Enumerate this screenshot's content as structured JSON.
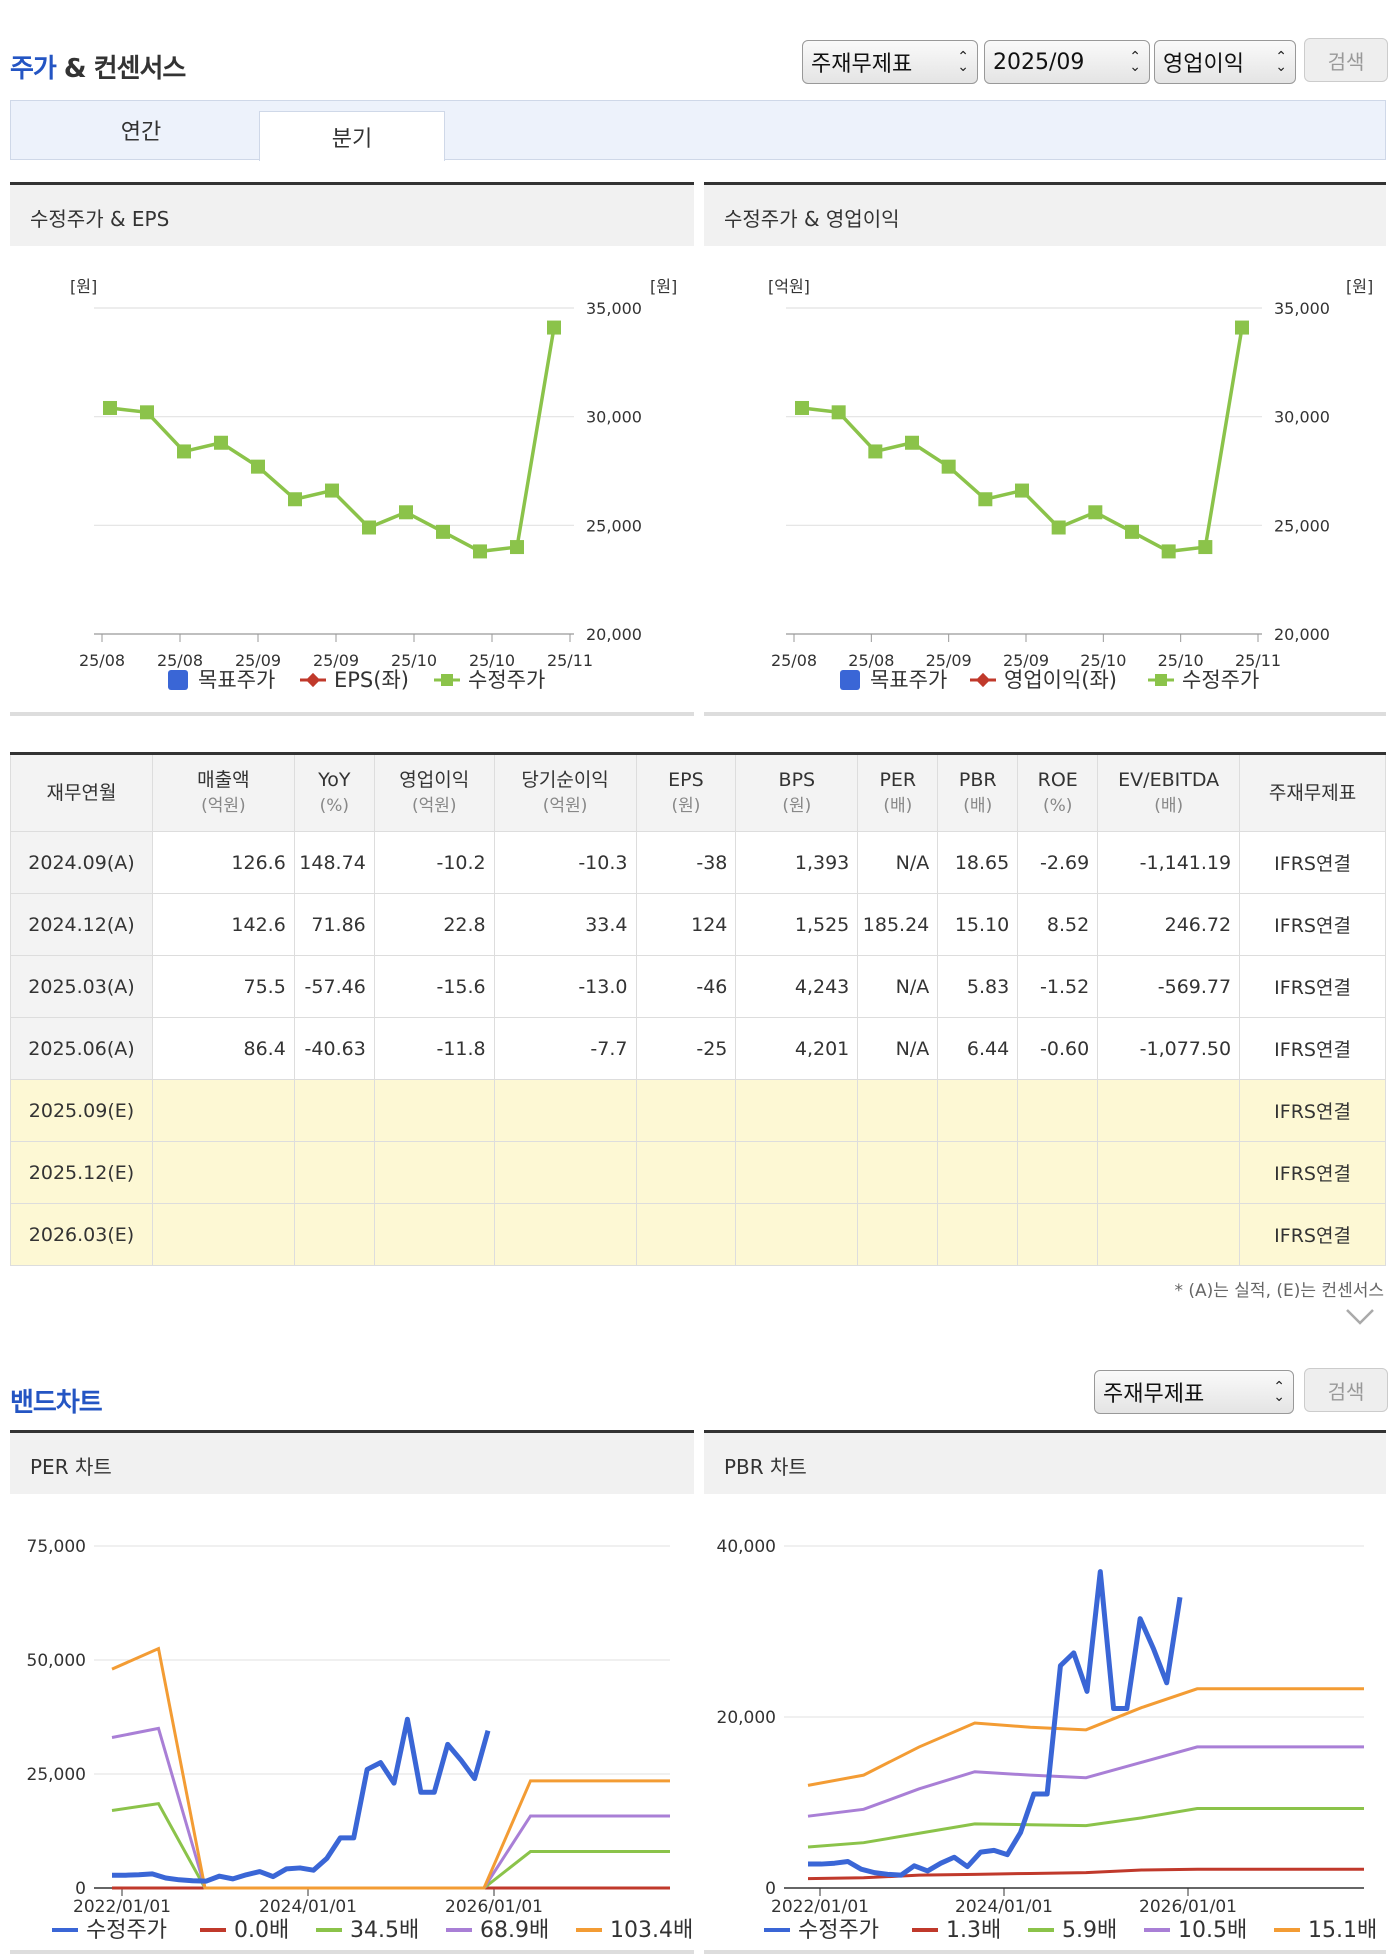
{
  "section1": {
    "title_part1": "주가",
    "title_part2": " & 컨센서스",
    "select1": "주재무제표",
    "select2": "2025/09",
    "select3": "영업이익",
    "search": "검색",
    "tabs": [
      "연간",
      "분기"
    ],
    "active_tab": "분기"
  },
  "panels": {
    "left_title": "수정주가 & EPS",
    "right_title": "수정주가 & 영업이익",
    "left_unit_left": "[원]",
    "left_unit_right": "[원]",
    "right_unit_left": "[억원]",
    "right_unit_right": "[원]",
    "left_legend": [
      "목표주가",
      "EPS(좌)",
      "수정주가"
    ],
    "right_legend": [
      "목표주가",
      "영업이익(좌)",
      "수정주가"
    ]
  },
  "chart_data": [
    {
      "type": "line",
      "title": "수정주가 & EPS",
      "x_ticks": [
        "25/08",
        "25/08",
        "25/09",
        "25/09",
        "25/10",
        "25/10",
        "25/11"
      ],
      "y_right_ticks": [
        "35,000",
        "30,000",
        "25,000",
        "20,000"
      ],
      "ylim": [
        20000,
        35000
      ],
      "series": [
        {
          "name": "수정주가",
          "color": "#8bc34a",
          "values": [
            30400,
            30200,
            28400,
            28800,
            27700,
            26200,
            26600,
            24900,
            25600,
            24700,
            23800,
            24000,
            34100
          ]
        }
      ]
    },
    {
      "type": "line",
      "title": "수정주가 & 영업이익",
      "x_ticks": [
        "25/08",
        "25/08",
        "25/09",
        "25/09",
        "25/10",
        "25/10",
        "25/11"
      ],
      "y_right_ticks": [
        "35,000",
        "30,000",
        "25,000",
        "20,000"
      ],
      "ylim": [
        20000,
        35000
      ],
      "series": [
        {
          "name": "수정주가",
          "color": "#8bc34a",
          "values": [
            30400,
            30200,
            28400,
            28800,
            27700,
            26200,
            26600,
            24900,
            25600,
            24700,
            23800,
            24000,
            34100
          ]
        }
      ]
    },
    {
      "type": "line",
      "title": "PER 차트",
      "x_ticks": [
        "2022/01/01",
        "2024/01/01",
        "2026/01/01"
      ],
      "y_ticks": [
        "75,000",
        "50,000",
        "25,000",
        "0"
      ],
      "ylim": [
        0,
        75000
      ],
      "series": [
        {
          "name": "수정주가",
          "color": "#3a66d6",
          "values": [
            2800,
            2800,
            2900,
            3100,
            2200,
            1800,
            1600,
            1500,
            2600,
            2000,
            2900,
            3600,
            2500,
            4200,
            4400,
            3900,
            6500,
            11000,
            11000,
            26000,
            27500,
            23000,
            37000,
            21000,
            21000,
            31500,
            28000,
            24000,
            34500
          ]
        },
        {
          "name": "0.0배",
          "color": "#c0392b",
          "values": [
            0,
            0,
            0,
            0,
            0,
            0,
            0,
            0,
            0,
            0,
            0,
            0,
            0
          ]
        },
        {
          "name": "34.5배",
          "color": "#8bc34a",
          "values": [
            17000,
            18500,
            0,
            0,
            0,
            0,
            0,
            0,
            0,
            8000,
            8000,
            8000,
            8000
          ]
        },
        {
          "name": "68.9배",
          "color": "#a97fd6",
          "values": [
            33000,
            35000,
            0,
            0,
            0,
            0,
            0,
            0,
            0,
            15800,
            15800,
            15800,
            15800
          ]
        },
        {
          "name": "103.4배",
          "color": "#f39c34",
          "values": [
            48000,
            52500,
            0,
            0,
            0,
            0,
            0,
            0,
            0,
            23500,
            23500,
            23500,
            23500
          ]
        }
      ]
    },
    {
      "type": "line",
      "title": "PBR 차트",
      "x_ticks": [
        "2022/01/01",
        "2024/01/01",
        "2026/01/01"
      ],
      "y_ticks": [
        "40,000",
        "20,000",
        "0"
      ],
      "ylim": [
        0,
        40000
      ],
      "series": [
        {
          "name": "수정주가",
          "color": "#3a66d6",
          "values": [
            2800,
            2800,
            2900,
            3100,
            2200,
            1800,
            1600,
            1500,
            2600,
            2000,
            2900,
            3600,
            2500,
            4200,
            4400,
            3900,
            6500,
            11000,
            11000,
            26000,
            27500,
            23000,
            37000,
            21000,
            21000,
            31500,
            28000,
            24000,
            34000
          ]
        },
        {
          "name": "1.3배",
          "color": "#c0392b",
          "values": [
            1100,
            1200,
            1500,
            1600,
            1700,
            1800,
            2100,
            2200,
            2200,
            2200,
            2200
          ]
        },
        {
          "name": "5.9배",
          "color": "#8bc34a",
          "values": [
            4800,
            5300,
            6400,
            7500,
            7400,
            7300,
            8200,
            9300,
            9300,
            9300,
            9300
          ]
        },
        {
          "name": "10.5배",
          "color": "#a97fd6",
          "values": [
            8400,
            9200,
            11600,
            13600,
            13200,
            12900,
            14700,
            16500,
            16500,
            16500,
            16500
          ]
        },
        {
          "name": "15.1배",
          "color": "#f39c34",
          "values": [
            12000,
            13200,
            16500,
            19300,
            18800,
            18500,
            21100,
            23300,
            23300,
            23300,
            23300
          ]
        }
      ]
    }
  ],
  "table": {
    "headers": [
      {
        "label": "재무연월",
        "unit": ""
      },
      {
        "label": "매출액",
        "unit": "(억원)"
      },
      {
        "label": "YoY",
        "unit": "(%)"
      },
      {
        "label": "영업이익",
        "unit": "(억원)"
      },
      {
        "label": "당기순이익",
        "unit": "(억원)"
      },
      {
        "label": "EPS",
        "unit": "(원)"
      },
      {
        "label": "BPS",
        "unit": "(원)"
      },
      {
        "label": "PER",
        "unit": "(배)"
      },
      {
        "label": "PBR",
        "unit": "(배)"
      },
      {
        "label": "ROE",
        "unit": "(%)"
      },
      {
        "label": "EV/EBITDA",
        "unit": "(배)"
      },
      {
        "label": "주재무제표",
        "unit": ""
      }
    ],
    "rows": [
      [
        "2024.09(A)",
        "126.6",
        "148.74",
        "-10.2",
        "-10.3",
        "-38",
        "1,393",
        "N/A",
        "18.65",
        "-2.69",
        "-1,141.19",
        "IFRS연결"
      ],
      [
        "2024.12(A)",
        "142.6",
        "71.86",
        "22.8",
        "33.4",
        "124",
        "1,525",
        "185.24",
        "15.10",
        "8.52",
        "246.72",
        "IFRS연결"
      ],
      [
        "2025.03(A)",
        "75.5",
        "-57.46",
        "-15.6",
        "-13.0",
        "-46",
        "4,243",
        "N/A",
        "5.83",
        "-1.52",
        "-569.77",
        "IFRS연결"
      ],
      [
        "2025.06(A)",
        "86.4",
        "-40.63",
        "-11.8",
        "-7.7",
        "-25",
        "4,201",
        "N/A",
        "6.44",
        "-0.60",
        "-1,077.50",
        "IFRS연결"
      ],
      [
        "2025.09(E)",
        "",
        "",
        "",
        "",
        "",
        "",
        "",
        "",
        "",
        "",
        "IFRS연결"
      ],
      [
        "2025.12(E)",
        "",
        "",
        "",
        "",
        "",
        "",
        "",
        "",
        "",
        "",
        "IFRS연결"
      ],
      [
        "2026.03(E)",
        "",
        "",
        "",
        "",
        "",
        "",
        "",
        "",
        "",
        "",
        "IFRS연결"
      ]
    ],
    "note": "* (A)는 실적, (E)는 컨센서스"
  },
  "section2": {
    "title": "밴드차트",
    "select": "주재무제표",
    "search": "검색",
    "per_title": "PER 차트",
    "pbr_title": "PBR 차트"
  }
}
